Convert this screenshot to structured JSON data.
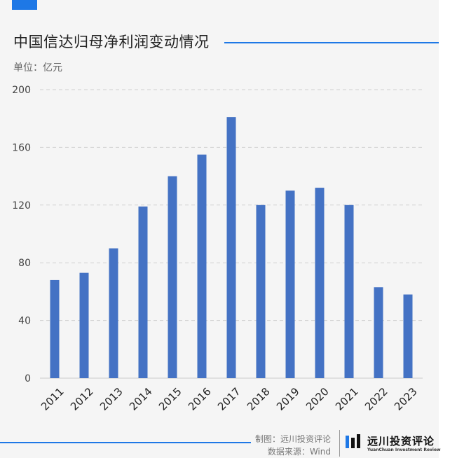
{
  "title": "中国信达归母净利润变动情况",
  "unit_label": "单位：亿元",
  "footer": {
    "credit_line1": "制图：远川投资评论",
    "credit_line2": "数据来源：Wind",
    "brand_name": "远川投资评论",
    "brand_sub": "YuanChuan Investment Review"
  },
  "colors": {
    "bar": "#4472c4",
    "accent": "#1e78e6"
  },
  "chart_data": {
    "type": "bar",
    "categories": [
      "2011",
      "2012",
      "2013",
      "2014",
      "2015",
      "2016",
      "2017",
      "2018",
      "2019",
      "2020",
      "2021",
      "2022",
      "2023"
    ],
    "values": [
      68,
      73,
      90,
      119,
      140,
      155,
      181,
      120,
      130,
      132,
      120,
      63,
      58
    ],
    "title": "中国信达归母净利润变动情况",
    "ylabel": "单位：亿元",
    "xlabel": "",
    "ylim": [
      0,
      200
    ],
    "yticks": [
      0,
      40,
      80,
      120,
      160,
      200
    ],
    "grid": true,
    "grid_style": "dashed",
    "legend": "none"
  }
}
